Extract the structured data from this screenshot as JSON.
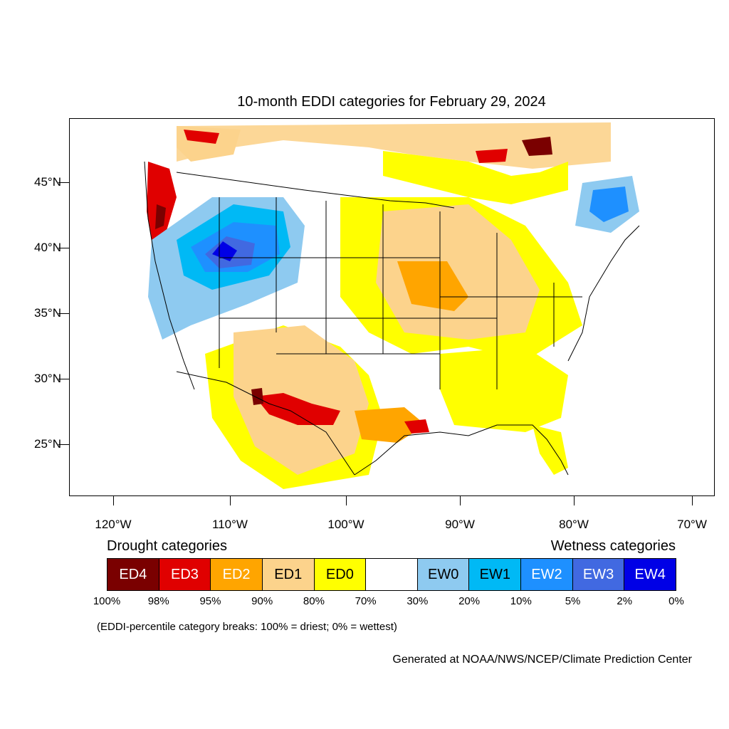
{
  "title": "10-month EDDI categories for February 29, 2024",
  "lat_ticks": [
    "45°N",
    "40°N",
    "35°N",
    "30°N",
    "25°N"
  ],
  "lon_ticks": [
    "120°W",
    "110°W",
    "100°W",
    "90°W",
    "80°W",
    "70°W"
  ],
  "drought_heading": "Drought categories",
  "wetness_heading": "Wetness categories",
  "legend": [
    {
      "label": "ED4",
      "color": "#7a0000",
      "text_color": "#ffffff"
    },
    {
      "label": "ED3",
      "color": "#e00000",
      "text_color": "#ffffff"
    },
    {
      "label": "ED2",
      "color": "#ffa500",
      "text_color": "#ffffff"
    },
    {
      "label": "ED1",
      "color": "#fcd38c",
      "text_color": "#000000"
    },
    {
      "label": "ED0",
      "color": "#ffff00",
      "text_color": "#000000"
    },
    {
      "label": "",
      "color": "#ffffff",
      "text_color": "#000000"
    },
    {
      "label": "EW0",
      "color": "#8ecaf0",
      "text_color": "#000000"
    },
    {
      "label": "EW1",
      "color": "#00b9f5",
      "text_color": "#000000"
    },
    {
      "label": "EW2",
      "color": "#1e90ff",
      "text_color": "#ffffff"
    },
    {
      "label": "EW3",
      "color": "#4169e1",
      "text_color": "#ffffff"
    },
    {
      "label": "EW4",
      "color": "#0000e6",
      "text_color": "#ffffff"
    }
  ],
  "percentiles": [
    "100%",
    "98%",
    "95%",
    "90%",
    "80%",
    "70%",
    "30%",
    "20%",
    "10%",
    "5%",
    "2%",
    "0%"
  ],
  "note": "(EDDI-percentile category breaks: 100% = driest; 0% = wettest)",
  "credit": "Generated at NOAA/NWS/NCEP/Climate Prediction Center"
}
